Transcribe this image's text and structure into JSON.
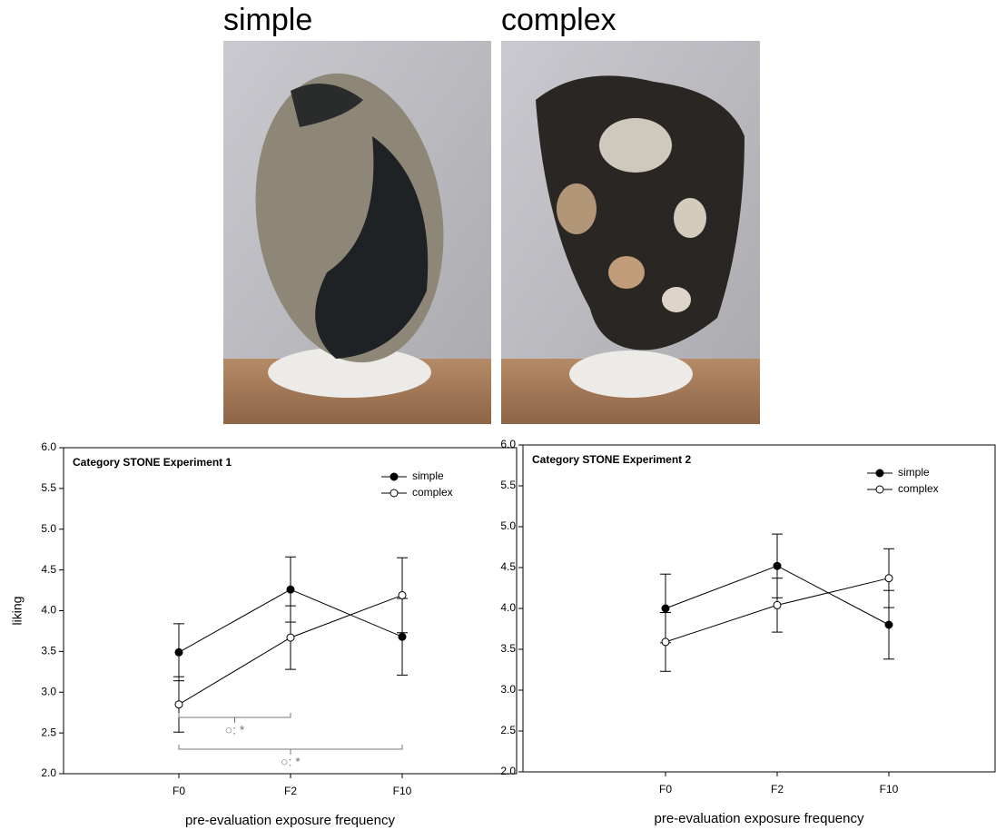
{
  "photos": [
    {
      "label": "simple"
    },
    {
      "label": "complex"
    }
  ],
  "chart_data": [
    {
      "type": "line",
      "title": "Category STONE Experiment 1",
      "y_label": "liking",
      "x_label": "pre-evaluation exposure frequency",
      "categories": [
        "F0",
        "F2",
        "F10"
      ],
      "series": [
        {
          "name": "simple",
          "color": "#000000",
          "marker": "filled",
          "values": [
            3.49,
            4.26,
            3.68
          ],
          "errors": [
            0.35,
            0.4,
            0.47
          ]
        },
        {
          "name": "complex",
          "color": "#000000",
          "marker": "open",
          "values": [
            2.85,
            3.67,
            4.19
          ],
          "errors": [
            0.34,
            0.39,
            0.46
          ]
        }
      ],
      "ylim": [
        2,
        6
      ],
      "yticks": [
        {
          "value": 2,
          "label": "2.0"
        },
        {
          "value": 2.5,
          "label": "2.5"
        },
        {
          "value": 3,
          "label": "3.0"
        },
        {
          "value": 3.5,
          "label": "3.5"
        },
        {
          "value": 4,
          "label": "4.0"
        },
        {
          "value": 4.5,
          "label": "4.5"
        },
        {
          "value": 5,
          "label": "5.0"
        },
        {
          "value": 5.5,
          "label": "5.5"
        },
        {
          "value": 6,
          "label": "6.0"
        }
      ],
      "significance": [
        {
          "from": 0,
          "to": 1,
          "label": "○: *"
        },
        {
          "from": 0,
          "to": 2,
          "label": "○: *"
        }
      ]
    },
    {
      "type": "line",
      "title": "Category STONE Experiment 2",
      "x_label": "pre-evaluation exposure frequency",
      "categories": [
        "F0",
        "F2",
        "F10"
      ],
      "series": [
        {
          "name": "simple",
          "color": "#000000",
          "marker": "filled",
          "values": [
            4.0,
            4.52,
            3.8
          ],
          "errors": [
            0.42,
            0.39,
            0.42
          ]
        },
        {
          "name": "complex",
          "color": "#000000",
          "marker": "open",
          "values": [
            3.59,
            4.04,
            4.37
          ],
          "errors": [
            0.36,
            0.33,
            0.36
          ]
        }
      ],
      "ylim": [
        2,
        6
      ],
      "yticks": [
        {
          "value": 2,
          "label": "2.0"
        },
        {
          "value": 2.5,
          "label": "2.5"
        },
        {
          "value": 3,
          "label": "3.0"
        },
        {
          "value": 3.5,
          "label": "3.5"
        },
        {
          "value": 4,
          "label": "4.0"
        },
        {
          "value": 4.5,
          "label": "4.5"
        },
        {
          "value": 5,
          "label": "5.0"
        },
        {
          "value": 5.5,
          "label": "5.5"
        },
        {
          "value": 6,
          "label": "6.0"
        }
      ]
    }
  ]
}
